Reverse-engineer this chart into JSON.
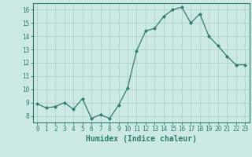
{
  "x": [
    0,
    1,
    2,
    3,
    4,
    5,
    6,
    7,
    8,
    9,
    10,
    11,
    12,
    13,
    14,
    15,
    16,
    17,
    18,
    19,
    20,
    21,
    22,
    23
  ],
  "y": [
    8.9,
    8.6,
    8.7,
    9.0,
    8.5,
    9.3,
    7.8,
    8.1,
    7.8,
    8.8,
    10.1,
    12.9,
    14.4,
    14.6,
    15.5,
    16.0,
    16.2,
    15.0,
    15.7,
    14.0,
    13.3,
    12.5,
    11.85,
    11.85
  ],
  "line_color": "#2e7d6e",
  "marker": "D",
  "marker_size": 2.0,
  "bg_color": "#cce9e5",
  "grid_color": "#b0d0cc",
  "xlabel": "Humidex (Indice chaleur)",
  "xlim": [
    -0.5,
    23.5
  ],
  "ylim": [
    7.5,
    16.5
  ],
  "yticks": [
    8,
    9,
    10,
    11,
    12,
    13,
    14,
    15,
    16
  ],
  "xticks": [
    0,
    1,
    2,
    3,
    4,
    5,
    6,
    7,
    8,
    9,
    10,
    11,
    12,
    13,
    14,
    15,
    16,
    17,
    18,
    19,
    20,
    21,
    22,
    23
  ],
  "tick_label_fontsize": 5.5,
  "xlabel_fontsize": 7.0,
  "tick_color": "#2e7d6e",
  "axis_color": "#2e7d6e",
  "linewidth": 0.9
}
